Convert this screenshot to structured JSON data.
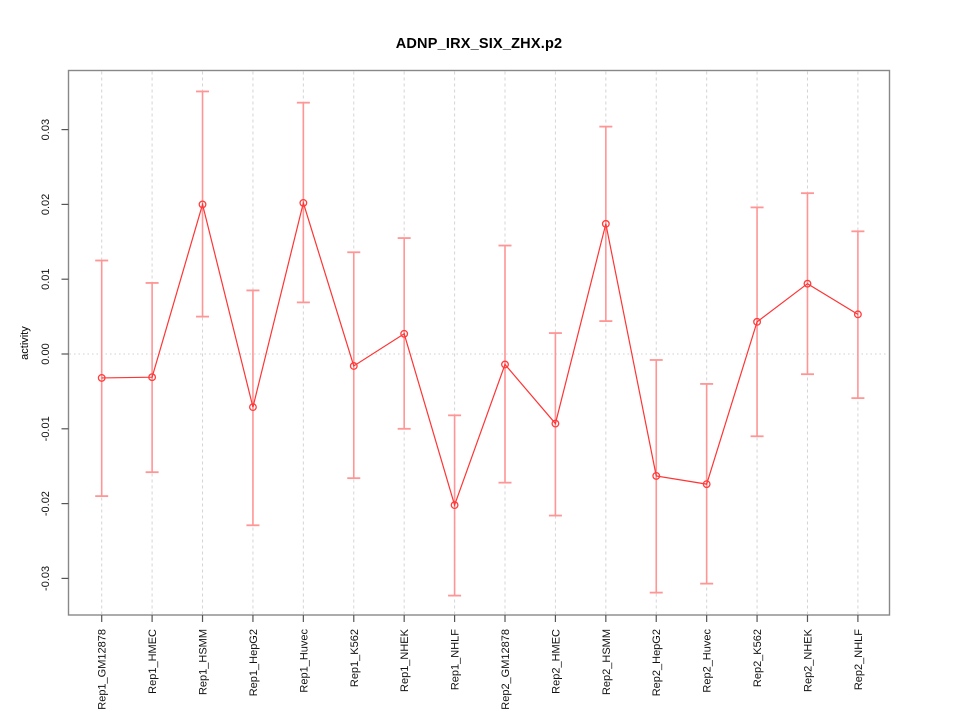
{
  "figure": {
    "title": "ADNP_IRX_SIX_ZHX.p2"
  },
  "chart_data": {
    "type": "line",
    "title": "ADNP_IRX_SIX_ZHX.p2",
    "xlabel": "",
    "ylabel": "activity",
    "legend_position": "none",
    "grid": {
      "vertical": "dashed line per category",
      "horizontal": "dotted line at zero only"
    },
    "ylim": [
      -0.0349,
      0.0378
    ],
    "yticks": [
      "0.03",
      "0.02",
      "0.01",
      "0.00",
      "-0.01",
      "-0.02",
      "-0.03"
    ],
    "ytick_values": [
      0.03,
      0.02,
      0.01,
      0.0,
      -0.01,
      -0.02,
      -0.03
    ],
    "categories": [
      "Rep1_GM12878",
      "Rep1_HMEC",
      "Rep1_HSMM",
      "Rep1_HepG2",
      "Rep1_Huvec",
      "Rep1_K562",
      "Rep1_NHEK",
      "Rep1_NHLF",
      "Rep2_GM12878",
      "Rep2_HMEC",
      "Rep2_HSMM",
      "Rep2_HepG2",
      "Rep2_Huvec",
      "Rep2_K562",
      "Rep2_NHEK",
      "Rep2_NHLF"
    ],
    "series": [
      {
        "name": "activity",
        "marker": "open-circle",
        "values": [
          -0.0032,
          -0.0031,
          0.02,
          -0.0071,
          0.0202,
          -0.0016,
          0.0027,
          -0.0202,
          -0.0014,
          -0.0093,
          0.0174,
          -0.0163,
          -0.0174,
          0.0043,
          0.0094,
          0.0053
        ],
        "err_low": [
          -0.019,
          -0.0158,
          0.005,
          -0.0229,
          0.0069,
          -0.0166,
          -0.01,
          -0.0323,
          -0.0172,
          -0.0216,
          0.0044,
          -0.0319,
          -0.0307,
          -0.011,
          -0.0027,
          -0.0059
        ],
        "err_high": [
          0.0125,
          0.0095,
          0.0351,
          0.0085,
          0.0336,
          0.0136,
          0.0155,
          -0.0082,
          0.0145,
          0.0028,
          0.0304,
          -0.0008,
          -0.004,
          0.0196,
          0.0215,
          0.0164
        ]
      }
    ],
    "colors": {
      "series_line": "#ff3434",
      "point_stroke": "#ff3d3d",
      "error_bar": "#ff9595",
      "grid_vertical": "#d4d4d4",
      "zero_line": "#d0d0d0",
      "frame": "#888888",
      "tick": "#555555",
      "text": "#111111",
      "background": "#ffffff"
    }
  }
}
